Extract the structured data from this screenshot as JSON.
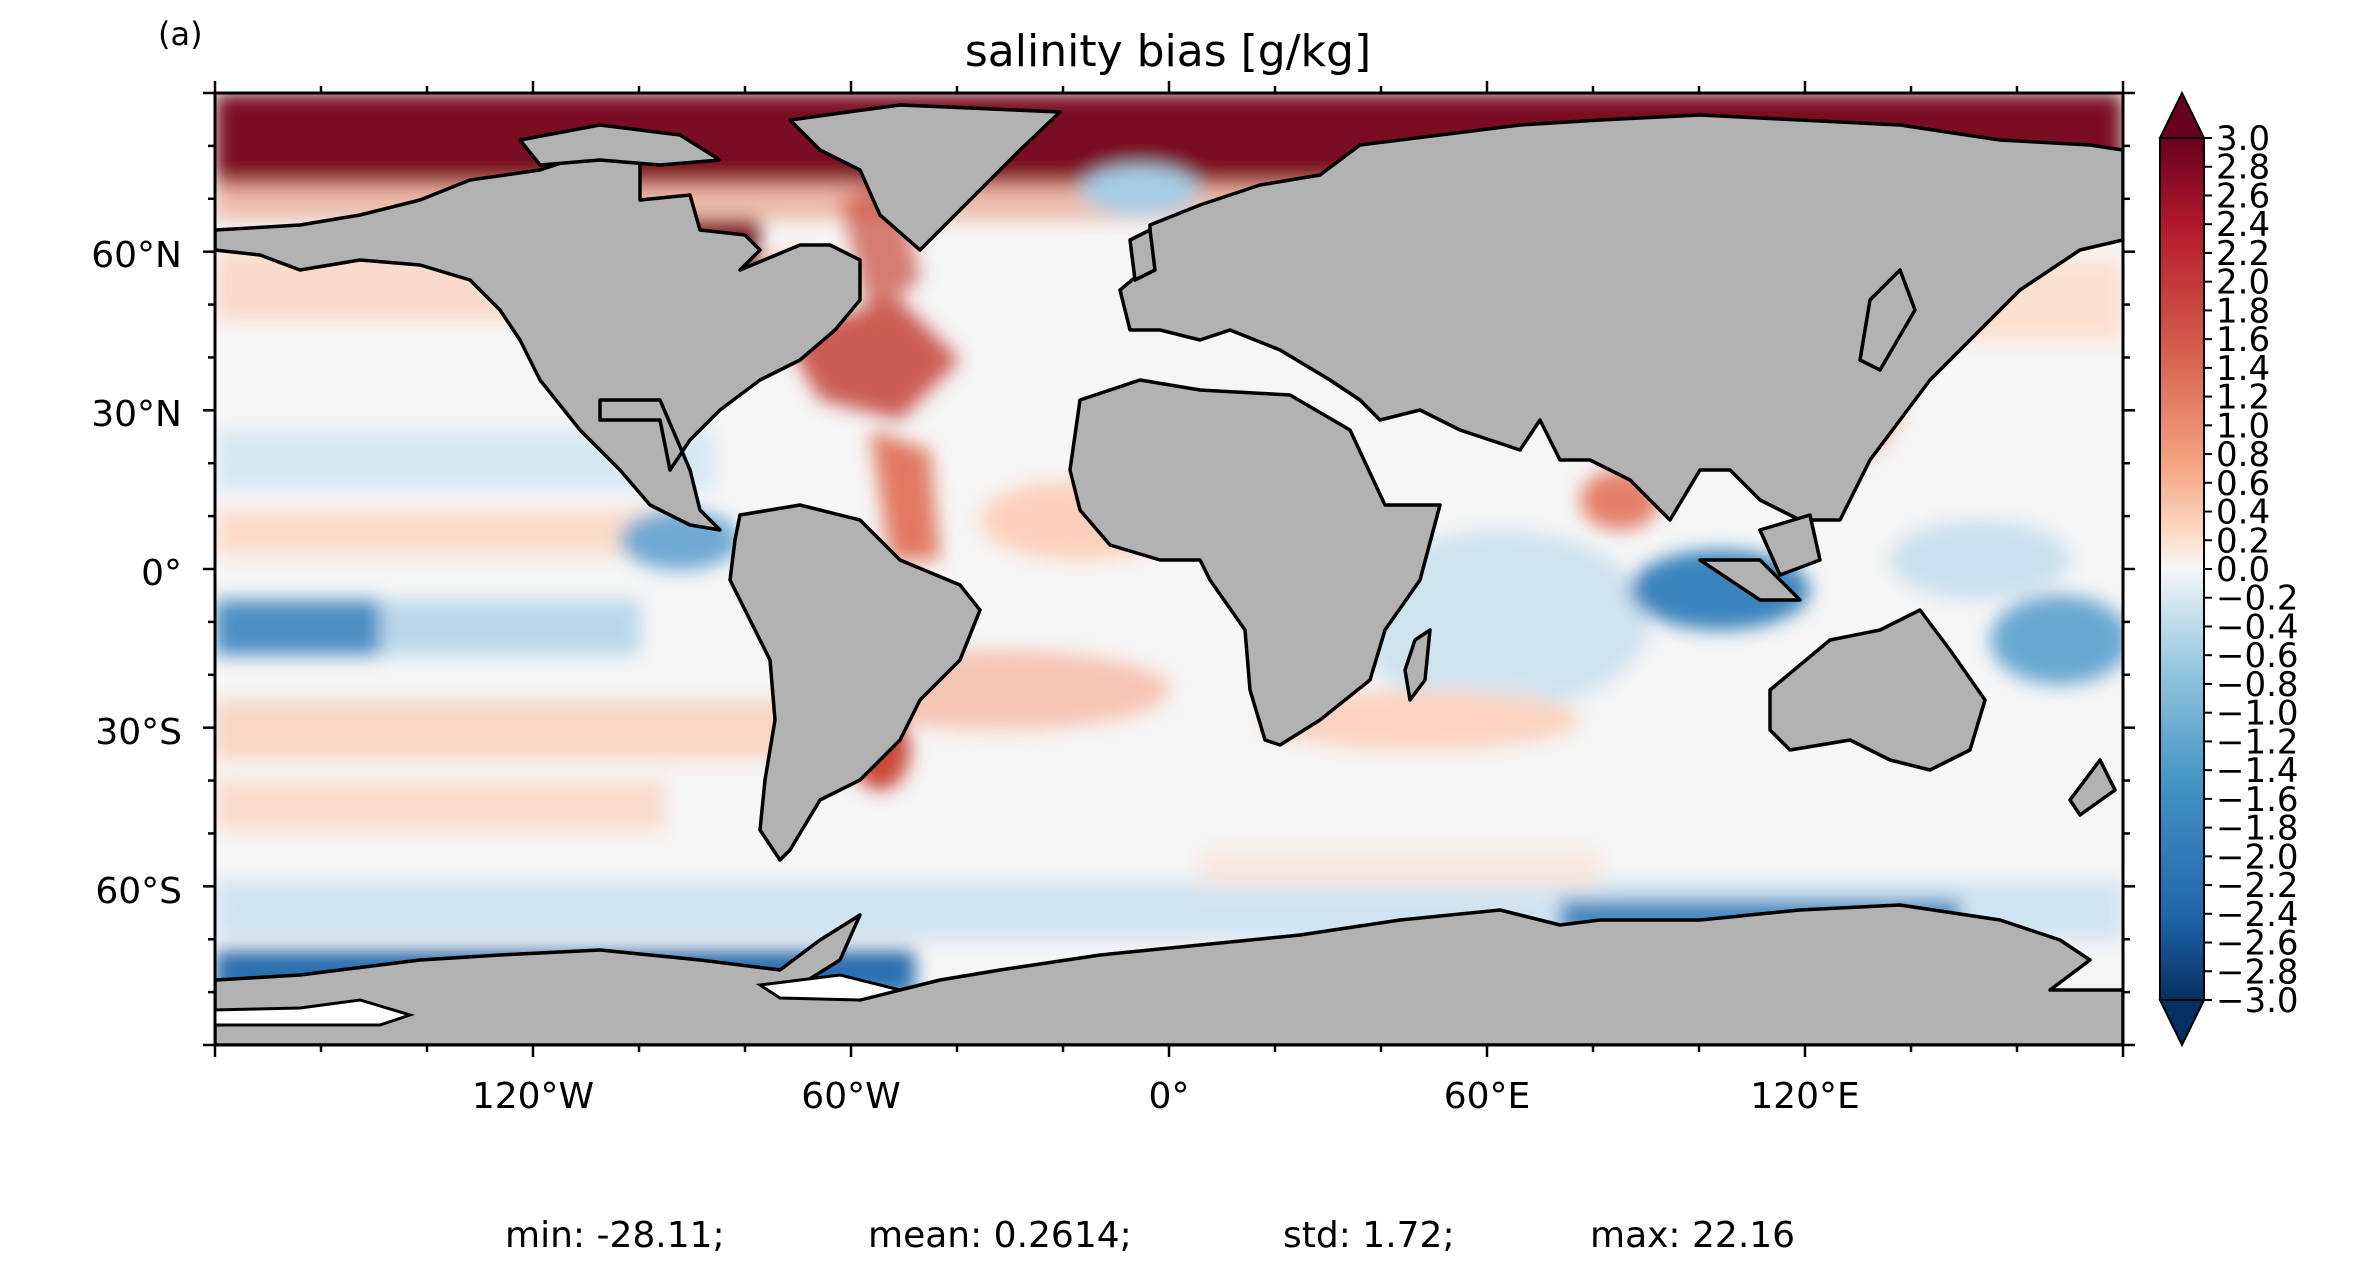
{
  "panel_label": "(a)",
  "title": "salinity bias [g/kg]",
  "map": {
    "projection": "equirectangular",
    "lon_range": [
      -180,
      180
    ],
    "lat_range": [
      -90,
      90
    ],
    "land_color": "#b2b2b2",
    "coastline_color": "#000000",
    "lat_ticks": [
      {
        "value": 60,
        "label": "60°N"
      },
      {
        "value": 30,
        "label": "30°N"
      },
      {
        "value": 0,
        "label": "0°"
      },
      {
        "value": -30,
        "label": "30°S"
      },
      {
        "value": -60,
        "label": "60°S"
      }
    ],
    "lon_ticks": [
      {
        "value": -120,
        "label": "120°W"
      },
      {
        "value": -60,
        "label": "60°W"
      },
      {
        "value": 0,
        "label": "0°"
      },
      {
        "value": 60,
        "label": "60°E"
      },
      {
        "value": 120,
        "label": "120°E"
      }
    ]
  },
  "colorbar": {
    "min": -3.0,
    "max": 3.0,
    "extend": "both",
    "colormap": "RdBu_r",
    "ticks": [
      "3.0",
      "2.8",
      "2.6",
      "2.4",
      "2.2",
      "2.0",
      "1.8",
      "1.6",
      "1.4",
      "1.2",
      "1.0",
      "0.8",
      "0.6",
      "0.4",
      "0.2",
      "0.0",
      "−0.2",
      "−0.4",
      "−0.6",
      "−0.8",
      "−1.0",
      "−1.2",
      "−1.4",
      "−1.6",
      "−1.8",
      "−2.0",
      "−2.2",
      "−2.4",
      "−2.6",
      "−2.8",
      "−3.0"
    ]
  },
  "stats": {
    "min": "min: -28.11;",
    "mean": "mean: 0.2614;",
    "std": "std: 1.72;",
    "max": "max: 22.16"
  }
}
